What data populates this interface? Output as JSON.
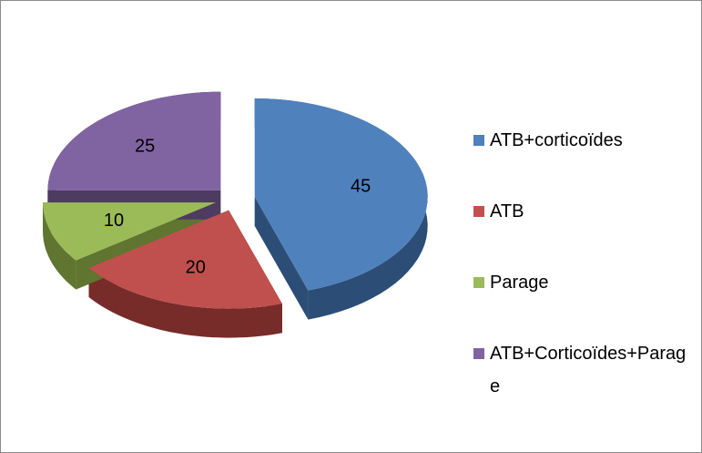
{
  "chart_data": {
    "type": "pie3d",
    "categories": [
      "ATB+corticoïdes",
      "ATB",
      "Parage",
      "ATB+Corticoïdes+Parage"
    ],
    "values": [
      45,
      20,
      10,
      25
    ],
    "colors": [
      "#4f81bd",
      "#c0504d",
      "#9bbb59",
      "#8064a2"
    ],
    "side_colors": [
      "#2c4d75",
      "#772c2a",
      "#5f7530",
      "#4d3b62"
    ],
    "legend": "right"
  }
}
